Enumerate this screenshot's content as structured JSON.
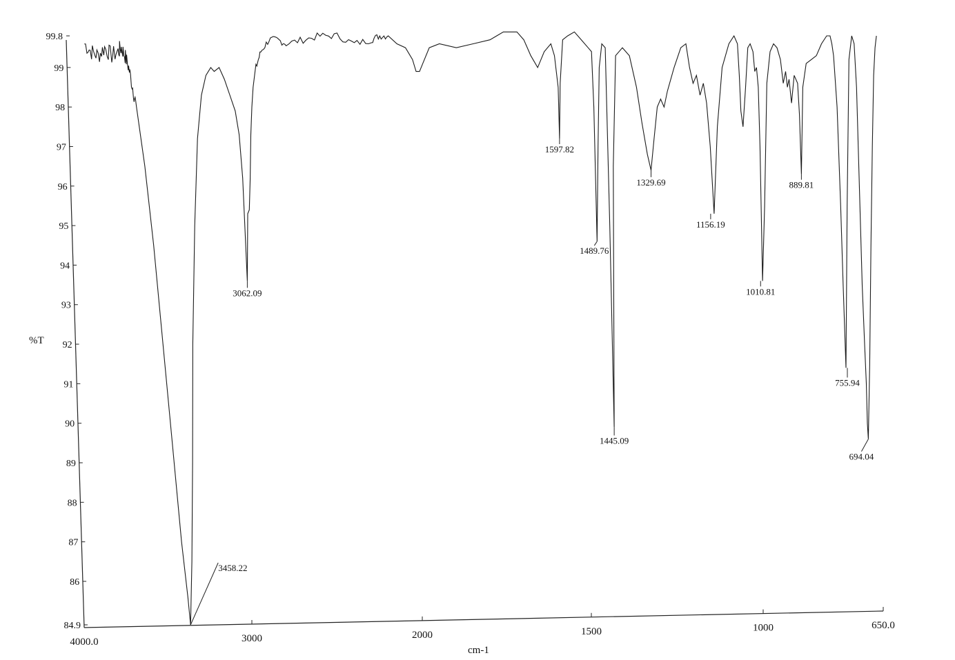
{
  "chart_data": {
    "type": "line",
    "title": "",
    "xlabel": "cm-1",
    "ylabel": "%T",
    "x_range": [
      4000.0,
      650.0
    ],
    "y_range": [
      84.9,
      99.8
    ],
    "x_reversed": true,
    "grid": false,
    "legend": "none",
    "x_tick_labels": [
      "4000.0",
      "3000",
      "2000",
      "1500",
      "1000",
      "650.0"
    ],
    "x_tick_values": [
      4000,
      3000,
      2000,
      1500,
      1000,
      650
    ],
    "y_tick_labels": [
      "99.8",
      "99",
      "98",
      "97",
      "96",
      "95",
      "94",
      "93",
      "92",
      "91",
      "90",
      "89",
      "88",
      "87",
      "86",
      "84.9"
    ],
    "y_tick_values": [
      99.8,
      99,
      98,
      97,
      96,
      95,
      94,
      93,
      92,
      91,
      90,
      89,
      88,
      87,
      86,
      84.9
    ],
    "peaks": [
      {
        "label": "3458.22",
        "x": 3458.22,
        "y": 84.9
      },
      {
        "label": "3062.09",
        "x": 3062.09,
        "y": 93.6
      },
      {
        "label": "1597.82",
        "x": 1597.82,
        "y": 97.2
      },
      {
        "label": "1489.76",
        "x": 1489.76,
        "y": 94.6
      },
      {
        "label": "1445.09",
        "x": 1445.09,
        "y": 89.9
      },
      {
        "label": "1329.69",
        "x": 1329.69,
        "y": 96.4
      },
      {
        "label": "1156.19",
        "x": 1156.19,
        "y": 95.3
      },
      {
        "label": "1010.81",
        "x": 1010.81,
        "y": 93.6
      },
      {
        "label": "889.81",
        "x": 889.81,
        "y": 96.3
      },
      {
        "label": "755.94",
        "x": 755.94,
        "y": 91.4
      },
      {
        "label": "694.04",
        "x": 694.04,
        "y": 89.6
      }
    ],
    "series": [
      {
        "x": [
          4000,
          3960,
          3920,
          3880,
          3840,
          3800,
          3780,
          3760,
          3740,
          3720,
          3700,
          3660,
          3620,
          3580,
          3540,
          3500,
          3470,
          3458.22,
          3440,
          3420,
          3400,
          3370,
          3340,
          3310,
          3280,
          3250,
          3230,
          3200,
          3170,
          3140,
          3110,
          3090,
          3075,
          3062.09,
          3050,
          3040,
          3030,
          3020,
          3010,
          3000,
          2980,
          2950,
          2900,
          2850,
          2800,
          2700,
          2600,
          2500,
          2400,
          2300,
          2250,
          2200,
          2150,
          2100,
          2060,
          2040,
          2020,
          2000,
          1980,
          1950,
          1900,
          1850,
          1800,
          1780,
          1760,
          1740,
          1720,
          1700,
          1680,
          1660,
          1640,
          1620,
          1610,
          1600,
          1597.82,
          1594,
          1585,
          1570,
          1550,
          1530,
          1510,
          1500,
          1495,
          1489.76,
          1484,
          1478,
          1470,
          1460,
          1452,
          1445.09,
          1440,
          1430,
          1410,
          1390,
          1370,
          1355,
          1340,
          1329.69,
          1320,
          1310,
          1300,
          1290,
          1280,
          1260,
          1240,
          1225,
          1215,
          1205,
          1195,
          1185,
          1175,
          1166,
          1156.19,
          1146,
          1135,
          1120,
          1100,
          1085,
          1075,
          1070,
          1066,
          1060,
          1052,
          1045,
          1038,
          1030,
          1025,
          1020,
          1015,
          1010.81,
          1005,
          998,
          990,
          980,
          970,
          960,
          950,
          942,
          935,
          930,
          925,
          918,
          910,
          900,
          895,
          889.81,
          885,
          875,
          860,
          845,
          830,
          815,
          805,
          800,
          795,
          785,
          775,
          768,
          760,
          755.94,
          750,
          742,
          735,
          728,
          720,
          712,
          705,
          700,
          697,
          694.04,
          690,
          686,
          682,
          678,
          674,
          670
        ],
        "y": [
          99.6,
          99.4,
          99.3,
          99.5,
          99.3,
          99.4,
          99.5,
          99.3,
          99.0,
          98.5,
          98.0,
          96.5,
          94.5,
          92.0,
          89.5,
          87.0,
          85.6,
          84.9,
          86.5,
          89.0,
          92.0,
          95.0,
          97.2,
          98.3,
          98.8,
          99.0,
          98.9,
          99.0,
          98.7,
          98.3,
          97.9,
          97.3,
          96.2,
          93.6,
          95.3,
          95.4,
          96.2,
          97.3,
          98.0,
          98.5,
          99.0,
          99.4,
          99.7,
          99.7,
          99.6,
          99.7,
          99.8,
          99.8,
          99.6,
          99.7,
          99.8,
          99.8,
          99.6,
          99.5,
          99.2,
          98.9,
          98.9,
          99.1,
          99.5,
          99.6,
          99.5,
          99.6,
          99.7,
          99.8,
          99.9,
          99.9,
          99.9,
          99.7,
          99.3,
          99.0,
          99.4,
          99.6,
          99.3,
          98.5,
          97.2,
          98.6,
          99.7,
          99.8,
          99.9,
          99.7,
          99.5,
          99.4,
          98.0,
          94.6,
          97.0,
          99.0,
          99.6,
          99.5,
          95.0,
          89.9,
          96.5,
          99.3,
          99.5,
          99.3,
          98.5,
          97.6,
          96.8,
          96.4,
          97.2,
          98.0,
          98.2,
          98.0,
          98.4,
          99.0,
          99.5,
          99.6,
          99.0,
          98.6,
          98.8,
          98.3,
          98.6,
          98.1,
          97.0,
          95.3,
          97.5,
          99.0,
          99.6,
          99.8,
          99.6,
          98.8,
          97.9,
          97.5,
          98.5,
          99.5,
          99.6,
          99.4,
          98.9,
          99.0,
          98.5,
          97.0,
          93.6,
          95.5,
          98.6,
          99.4,
          99.6,
          99.5,
          99.2,
          98.6,
          98.9,
          98.5,
          98.7,
          98.1,
          98.8,
          98.6,
          97.8,
          96.3,
          98.5,
          99.1,
          99.2,
          99.3,
          99.6,
          99.8,
          99.8,
          99.6,
          99.3,
          98.0,
          95.5,
          93.5,
          91.4,
          95.5,
          99.2,
          99.8,
          99.6,
          98.5,
          96.0,
          93.5,
          92.0,
          91.0,
          90.0,
          89.6,
          91.5,
          94.5,
          97.0,
          98.8,
          99.5,
          99.8
        ]
      }
    ]
  }
}
